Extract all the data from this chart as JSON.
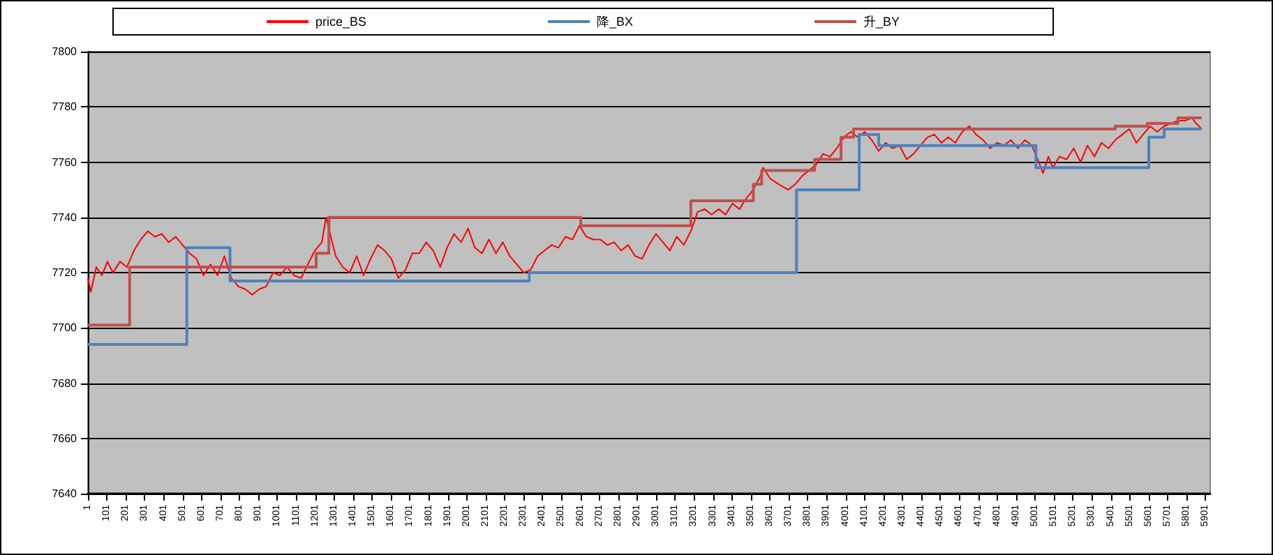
{
  "chart_data": {
    "type": "line",
    "xlim": [
      1,
      5926
    ],
    "xticks": [
      1,
      101,
      201,
      301,
      401,
      501,
      601,
      701,
      801,
      901,
      1001,
      1101,
      1201,
      1301,
      1401,
      1501,
      1601,
      1701,
      1801,
      1901,
      2001,
      2101,
      2201,
      2301,
      2401,
      2501,
      2601,
      2701,
      2801,
      2901,
      3001,
      3101,
      3201,
      3301,
      3401,
      3501,
      3601,
      3701,
      3801,
      3901,
      4001,
      4101,
      4201,
      4301,
      4401,
      4501,
      4601,
      4701,
      4801,
      4901,
      5001,
      5101,
      5201,
      5301,
      5401,
      5501,
      5601,
      5701,
      5801,
      5901
    ],
    "ylim": [
      7640,
      7800
    ],
    "yticks": [
      7640,
      7660,
      7680,
      7700,
      7720,
      7740,
      7760,
      7780,
      7800
    ],
    "grid": "y",
    "legend": "top",
    "marker": "none",
    "line_style": "solid",
    "series": [
      {
        "name": "price_BS",
        "color": "#ff0000",
        "x": [
          1,
          16,
          45,
          75,
          104,
          133,
          170,
          207,
          244,
          280,
          317,
          354,
          391,
          427,
          464,
          501,
          538,
          574,
          611,
          648,
          685,
          721,
          758,
          795,
          832,
          868,
          905,
          942,
          979,
          1015,
          1052,
          1089,
          1126,
          1162,
          1199,
          1236,
          1258,
          1280,
          1309,
          1346,
          1383,
          1420,
          1456,
          1493,
          1530,
          1567,
          1603,
          1640,
          1677,
          1714,
          1750,
          1787,
          1824,
          1861,
          1897,
          1934,
          1971,
          2008,
          2044,
          2081,
          2118,
          2155,
          2191,
          2228,
          2265,
          2302,
          2338,
          2375,
          2412,
          2449,
          2485,
          2522,
          2559,
          2596,
          2632,
          2669,
          2706,
          2743,
          2779,
          2816,
          2853,
          2890,
          2926,
          2963,
          3000,
          3037,
          3073,
          3110,
          3147,
          3184,
          3220,
          3257,
          3294,
          3331,
          3367,
          3404,
          3441,
          3478,
          3514,
          3551,
          3566,
          3603,
          3647,
          3698,
          3735,
          3772,
          3808,
          3845,
          3882,
          3919,
          3955,
          3992,
          4029,
          4066,
          4102,
          4139,
          4176,
          4213,
          4249,
          4286,
          4323,
          4360,
          4396,
          4433,
          4470,
          4507,
          4543,
          4580,
          4617,
          4654,
          4690,
          4727,
          4764,
          4801,
          4837,
          4874,
          4911,
          4948,
          4984,
          5021,
          5043,
          5072,
          5095,
          5131,
          5168,
          5205,
          5242,
          5278,
          5315,
          5352,
          5389,
          5425,
          5462,
          5499,
          5536,
          5572,
          5609,
          5646,
          5683,
          5719,
          5756,
          5793,
          5830,
          5852,
          5881
        ],
        "values": [
          7718,
          7713,
          7722,
          7719,
          7724,
          7720,
          7724,
          7722,
          7728,
          7732,
          7735,
          7733,
          7734,
          7731,
          7733,
          7730,
          7727,
          7725,
          7719,
          7723,
          7719,
          7726,
          7718,
          7715,
          7714,
          7712,
          7714,
          7715,
          7720,
          7719,
          7722,
          7719,
          7718,
          7723,
          7728,
          7731,
          7740,
          7734,
          7726,
          7722,
          7720,
          7726,
          7719,
          7725,
          7730,
          7728,
          7725,
          7718,
          7721,
          7727,
          7727,
          7731,
          7728,
          7722,
          7729,
          7734,
          7731,
          7736,
          7729,
          7727,
          7732,
          7727,
          7731,
          7726,
          7723,
          7720,
          7721,
          7726,
          7728,
          7730,
          7729,
          7733,
          7732,
          7737,
          7733,
          7732,
          7732,
          7730,
          7731,
          7728,
          7730,
          7726,
          7725,
          7730,
          7734,
          7731,
          7728,
          7733,
          7730,
          7735,
          7742,
          7743,
          7741,
          7743,
          7741,
          7745,
          7743,
          7747,
          7750,
          7755,
          7758,
          7754,
          7752,
          7750,
          7752,
          7755,
          7757,
          7759,
          7763,
          7762,
          7765,
          7769,
          7771,
          7769,
          7771,
          7768,
          7764,
          7767,
          7765,
          7766,
          7761,
          7763,
          7766,
          7769,
          7770,
          7767,
          7769,
          7767,
          7771,
          7773,
          7770,
          7768,
          7765,
          7767,
          7766,
          7768,
          7765,
          7768,
          7766,
          7760,
          7756,
          7762,
          7758,
          7762,
          7761,
          7765,
          7760,
          7766,
          7762,
          7767,
          7765,
          7768,
          7770,
          7772,
          7767,
          7770,
          7773,
          7771,
          7773,
          7774,
          7775,
          7775,
          7776,
          7774,
          7772
        ]
      },
      {
        "name": "降_BX",
        "type": "step",
        "color": "#4f81bd",
        "x": [
          1,
          523,
          751,
          2331,
          3742,
          4073,
          4176,
          5006,
          5602,
          5683,
          5881
        ],
        "values": [
          7694,
          7729,
          7717,
          7720,
          7750,
          7770,
          7766,
          7758,
          7769,
          7772,
          7772
        ]
      },
      {
        "name": "升_BY",
        "type": "step",
        "color": "#c0504d",
        "x": [
          1,
          221,
          1206,
          1273,
          2603,
          3184,
          3514,
          3558,
          3838,
          3977,
          4043,
          5425,
          5594,
          5756,
          5881
        ],
        "values": [
          7701,
          7722,
          7727,
          7740,
          7737,
          7746,
          7752,
          7757,
          7761,
          7769,
          7772,
          7773,
          7774,
          7776,
          7776
        ]
      }
    ]
  }
}
